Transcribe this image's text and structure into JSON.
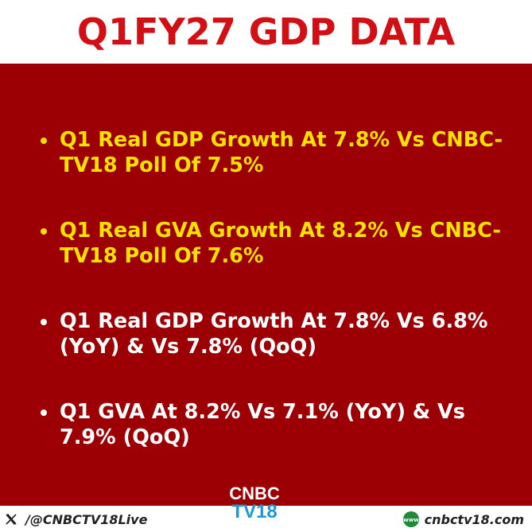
{
  "header": {
    "title": "Q1FY27 GDP DATA"
  },
  "bullets": [
    {
      "text": "Q1 Real GDP Growth At 7.8% Vs CNBC-TV18 Poll Of 7.5%",
      "color": "#ffe100"
    },
    {
      "text": "Q1 Real GVA Growth At 8.2% Vs CNBC-TV18 Poll Of 7.6%",
      "color": "#ffe100"
    },
    {
      "text": "Q1 Real GDP Growth At 7.8% Vs 6.8% (YoY) & Vs 7.8% (QoQ)",
      "color": "#ffffff"
    },
    {
      "text": "Q1 GVA At 8.2% Vs 7.1% (YoY) & Vs 7.9% (QoQ)",
      "color": "#ffffff"
    }
  ],
  "logo": {
    "top": "CNBC",
    "bottom": "TV18"
  },
  "footer": {
    "handle": "/@CNBCTV18Live",
    "handle_icon": "x-icon",
    "site": "cnbctv18.com",
    "site_icon": "globe-icon"
  },
  "colors": {
    "panel": "#9c0004",
    "title": "#d20f14",
    "highlight": "#ffe100",
    "brand_blue": "#1d9ad6"
  }
}
